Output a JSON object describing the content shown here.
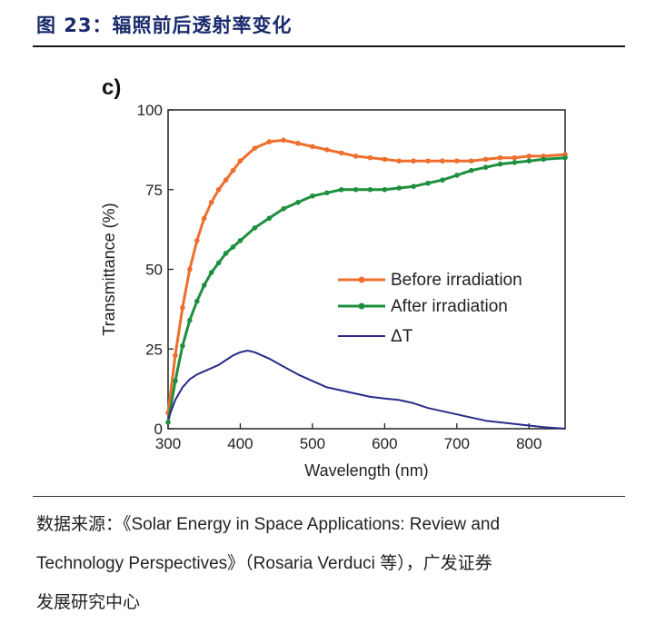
{
  "figure": {
    "title": "图 23：辐照前后透射率变化",
    "source_line1": "数据来源：《Solar Energy in Space Applications: Review and",
    "source_line2": "Technology Perspectives》（Rosaria Verduci 等），广发证券",
    "source_line3": "发展研究中心"
  },
  "chart_data": {
    "type": "line",
    "panel_label": "c)",
    "xlabel": "Wavelength (nm)",
    "ylabel": "Transmittance (%)",
    "xlim": [
      300,
      850
    ],
    "ylim": [
      0,
      100
    ],
    "xticks": [
      300,
      400,
      500,
      600,
      700,
      800
    ],
    "yticks": [
      0,
      25,
      50,
      75,
      100
    ],
    "legend_position": "center-right",
    "series": [
      {
        "name": "Before irradiation",
        "color": "#ee6f2d",
        "marker": "circle",
        "x": [
          300,
          310,
          320,
          330,
          340,
          350,
          360,
          370,
          380,
          390,
          400,
          420,
          440,
          460,
          480,
          500,
          520,
          540,
          560,
          580,
          600,
          620,
          640,
          660,
          680,
          700,
          720,
          740,
          760,
          780,
          800,
          820,
          850
        ],
        "y": [
          5,
          23,
          38,
          50,
          59,
          66,
          71,
          75,
          78,
          81,
          84,
          88,
          90,
          90.5,
          89.5,
          88.5,
          87.5,
          86.5,
          85.5,
          85,
          84.5,
          84,
          84,
          84,
          84,
          84,
          84,
          84.5,
          85,
          85,
          85.5,
          85.5,
          86
        ]
      },
      {
        "name": "After irradiation",
        "color": "#1e8f3e",
        "marker": "circle",
        "x": [
          300,
          310,
          320,
          330,
          340,
          350,
          360,
          370,
          380,
          390,
          400,
          420,
          440,
          460,
          480,
          500,
          520,
          540,
          560,
          580,
          600,
          620,
          640,
          660,
          680,
          700,
          720,
          740,
          760,
          780,
          800,
          820,
          850
        ],
        "y": [
          2,
          15,
          26,
          34,
          40,
          45,
          49,
          52,
          55,
          57,
          59,
          63,
          66,
          69,
          71,
          73,
          74,
          75,
          75,
          75,
          75,
          75.5,
          76,
          77,
          78,
          79.5,
          81,
          82,
          83,
          83.5,
          84,
          84.5,
          85
        ]
      },
      {
        "name": "ΔT",
        "color": "#2a2a8a",
        "marker": "none",
        "x": [
          300,
          310,
          320,
          330,
          340,
          350,
          360,
          370,
          380,
          390,
          400,
          410,
          420,
          440,
          460,
          480,
          500,
          520,
          540,
          560,
          580,
          600,
          620,
          640,
          660,
          680,
          700,
          720,
          740,
          760,
          780,
          800,
          820,
          850
        ],
        "y": [
          3,
          9,
          13,
          15.5,
          17,
          18,
          19,
          20,
          21.5,
          23,
          24,
          24.5,
          24,
          22,
          19.5,
          17,
          15,
          13,
          12,
          11,
          10,
          9.5,
          9,
          8,
          6.5,
          5.5,
          4.5,
          3.5,
          2.5,
          2,
          1.5,
          1,
          0.5,
          0
        ]
      }
    ]
  }
}
